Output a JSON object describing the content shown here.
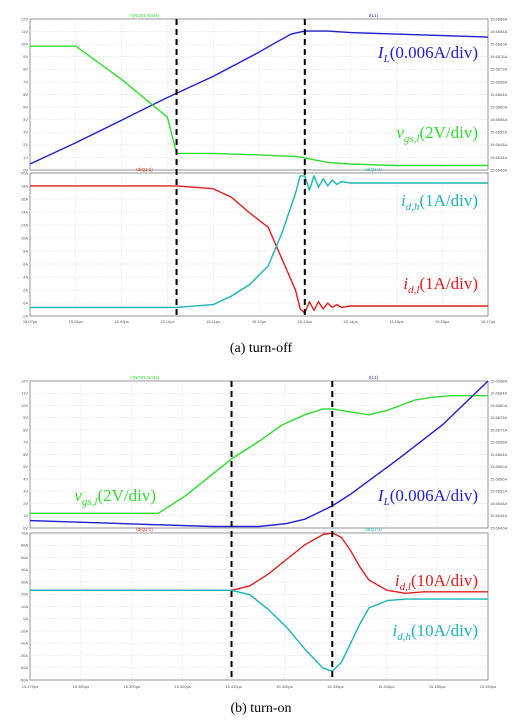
{
  "colors": {
    "il": "#1e1ed2",
    "vgs": "#2fdb2f",
    "idl": "#e01e1e",
    "idh": "#1ab4b4",
    "grid": "#d4d4d4",
    "frame": "#7a7a7a",
    "panel_bg": "#ffffff",
    "marker": "#000000"
  },
  "figures": [
    {
      "caption": "(a)  turn-off",
      "top": {
        "header_left": "V(NO01,N045)",
        "header_right": "I(L1)",
        "left_ticks": [
          "12V",
          "11V",
          "10V",
          "9V",
          "8V",
          "7V",
          "6V",
          "5V",
          "4V",
          "3V",
          "2V",
          "1V",
          "0V"
        ],
        "right_ticks": [
          "15.6688A",
          "15.6684A",
          "15.6680A",
          "15.6676A",
          "15.6672A",
          "15.6668A",
          "15.6664A",
          "15.6660A",
          "15.6656A",
          "15.6652A",
          "15.6648A",
          "15.6644A",
          "15.6640A"
        ],
        "labels": [
          {
            "main": "I",
            "sub": "L",
            "rest": "(0.006A/div)",
            "series": "il"
          },
          {
            "main": "v",
            "sub": "gs,l",
            "rest": "(2V/div)",
            "series": "vgs"
          }
        ]
      },
      "bottom": {
        "header_left": "Id(Q1:1)",
        "header_right": "Id(Q1:3)",
        "left_ticks": [
          "20A",
          "18A",
          "16A",
          "14A",
          "12A",
          "10A",
          "8A",
          "6A",
          "4A",
          "2A",
          "0A",
          "-2A"
        ],
        "right_ticks": [],
        "labels": [
          {
            "main": "i",
            "sub": "d,h",
            "rest": "(1A/div)",
            "series": "idh"
          },
          {
            "main": "i",
            "sub": "d,l",
            "rest": "(1A/div)",
            "series": "idl"
          }
        ]
      },
      "x_ticks": [
        "15.07µs",
        "15.08µs",
        "15.09µs",
        "15.10µs",
        "15.11µs",
        "15.12µs",
        "15.13µs",
        "15.14µs",
        "15.15µs",
        "15.16µs",
        "15.17µs"
      ]
    },
    {
      "caption": "(b)  turn-on",
      "top": {
        "header_left": "V(NO01,N045)",
        "header_right": "I(L1)",
        "left_ticks": [
          "12V",
          "11V",
          "10V",
          "9V",
          "8V",
          "7V",
          "6V",
          "5V",
          "4V",
          "3V",
          "2V",
          "1V",
          "0V"
        ],
        "right_ticks": [
          "15.6688A",
          "15.6684A",
          "15.6680A",
          "15.6676A",
          "15.6672A",
          "15.6668A",
          "15.6664A",
          "15.6660A",
          "15.6656A",
          "15.6652A",
          "15.6648A",
          "15.6644A",
          "15.6640A"
        ],
        "labels": [
          {
            "main": "v",
            "sub": "gs,l",
            "rest": "(2V/div)",
            "series": "vgs"
          },
          {
            "main": "I",
            "sub": "L",
            "rest": "(0.006A/div)",
            "series": "il"
          }
        ]
      },
      "bottom": {
        "header_left": "Id(Q1:1)",
        "header_right": "Id(Q1:3)",
        "left_ticks": [
          "70A",
          "60A",
          "50A",
          "40A",
          "30A",
          "20A",
          "10A",
          "0A",
          "-10A",
          "-20A",
          "-30A",
          "-40A",
          "-50A"
        ],
        "right_ticks": [],
        "labels": [
          {
            "main": "i",
            "sub": "d,l",
            "rest": "(10A/div)",
            "series": "idl"
          },
          {
            "main": "i",
            "sub": "d,h",
            "rest": "(10A/div)",
            "series": "idh"
          }
        ]
      },
      "x_ticks": [
        "15.370µs",
        "15.380µs",
        "15.390µs",
        "15.400µs",
        "15.410µs",
        "15.420µs",
        "15.430µs",
        "15.440µs",
        "15.450µs",
        "15.460µs"
      ]
    }
  ],
  "chart_data": [
    {
      "type": "line",
      "title": "(a) turn-off",
      "xlim": [
        0,
        100
      ],
      "ylim": [
        0,
        100
      ],
      "markers_x": [
        32,
        60
      ],
      "series": [
        {
          "name": "I_L (0.006A/div)",
          "key": "il",
          "panel": "top",
          "x": [
            0,
            10,
            20,
            30,
            40,
            50,
            54,
            57,
            60,
            65,
            70,
            80,
            90,
            100
          ],
          "y": [
            4,
            18,
            33,
            48,
            62,
            78,
            85,
            90,
            92,
            92,
            91,
            90,
            89,
            88
          ]
        },
        {
          "name": "v_gs,l (2V/div)",
          "key": "vgs",
          "panel": "top",
          "x": [
            0,
            10,
            20,
            30,
            32,
            40,
            50,
            58,
            60,
            65,
            70,
            80,
            90,
            100
          ],
          "y": [
            82,
            82,
            60,
            35,
            11,
            11,
            10,
            9,
            8,
            5,
            4,
            3,
            3,
            3
          ]
        },
        {
          "name": "i_d,l (1A/div)",
          "key": "idl",
          "panel": "bottom",
          "x": [
            0,
            20,
            32,
            40,
            44,
            48,
            52,
            55,
            58,
            59,
            60,
            61,
            62,
            63,
            64,
            65,
            66,
            67,
            68,
            70,
            80,
            90,
            100
          ],
          "y": [
            91,
            91,
            91,
            89,
            83,
            72,
            62,
            40,
            18,
            5,
            2,
            10,
            4,
            10,
            5,
            9,
            6,
            8,
            6,
            7,
            7,
            7,
            7
          ]
        },
        {
          "name": "i_d,h (1A/div)",
          "key": "idh",
          "panel": "bottom",
          "x": [
            0,
            20,
            32,
            40,
            44,
            48,
            52,
            55,
            58,
            59,
            60,
            61,
            62,
            63,
            64,
            65,
            66,
            67,
            68,
            70,
            80,
            90,
            100
          ],
          "y": [
            6,
            6,
            6,
            8,
            14,
            22,
            35,
            58,
            86,
            98,
            98,
            88,
            98,
            90,
            96,
            91,
            95,
            92,
            94,
            93,
            93,
            93,
            93
          ]
        }
      ]
    },
    {
      "type": "line",
      "title": "(b) turn-on",
      "xlim": [
        0,
        100
      ],
      "ylim": [
        0,
        100
      ],
      "markers_x": [
        44,
        66
      ],
      "series": [
        {
          "name": "v_gs,l (2V/div)",
          "key": "vgs",
          "panel": "top",
          "x": [
            0,
            10,
            28,
            34,
            40,
            44,
            50,
            55,
            60,
            64,
            66,
            70,
            74,
            78,
            84,
            88,
            92,
            100
          ],
          "y": [
            10,
            10,
            10,
            22,
            37,
            47,
            59,
            70,
            77,
            81,
            81,
            79,
            77,
            80,
            87,
            89,
            90,
            90
          ]
        },
        {
          "name": "I_L (0.006A/div)",
          "key": "il",
          "panel": "top",
          "x": [
            0,
            20,
            40,
            44,
            50,
            56,
            60,
            66,
            70,
            80,
            90,
            100
          ],
          "y": [
            5,
            3,
            1,
            1,
            1,
            3,
            6,
            15,
            23,
            46,
            70,
            100
          ]
        },
        {
          "name": "i_d,l (10A/div)",
          "key": "idl",
          "panel": "bottom",
          "x": [
            0,
            20,
            40,
            44,
            48,
            52,
            56,
            60,
            64,
            66,
            68,
            70,
            72,
            74,
            78,
            82,
            86,
            90,
            100
          ],
          "y": [
            61,
            61,
            61,
            61,
            64,
            72,
            82,
            92,
            99,
            100,
            97,
            88,
            77,
            68,
            61,
            59,
            60,
            60,
            60
          ]
        },
        {
          "name": "i_d,h (10A/div)",
          "key": "idh",
          "panel": "bottom",
          "x": [
            0,
            20,
            40,
            44,
            48,
            52,
            56,
            60,
            64,
            66,
            68,
            70,
            72,
            74,
            78,
            82,
            86,
            90,
            100
          ],
          "y": [
            61,
            61,
            61,
            61,
            58,
            48,
            36,
            21,
            8,
            6,
            12,
            25,
            38,
            49,
            54,
            55,
            55,
            55,
            55
          ]
        }
      ]
    }
  ]
}
